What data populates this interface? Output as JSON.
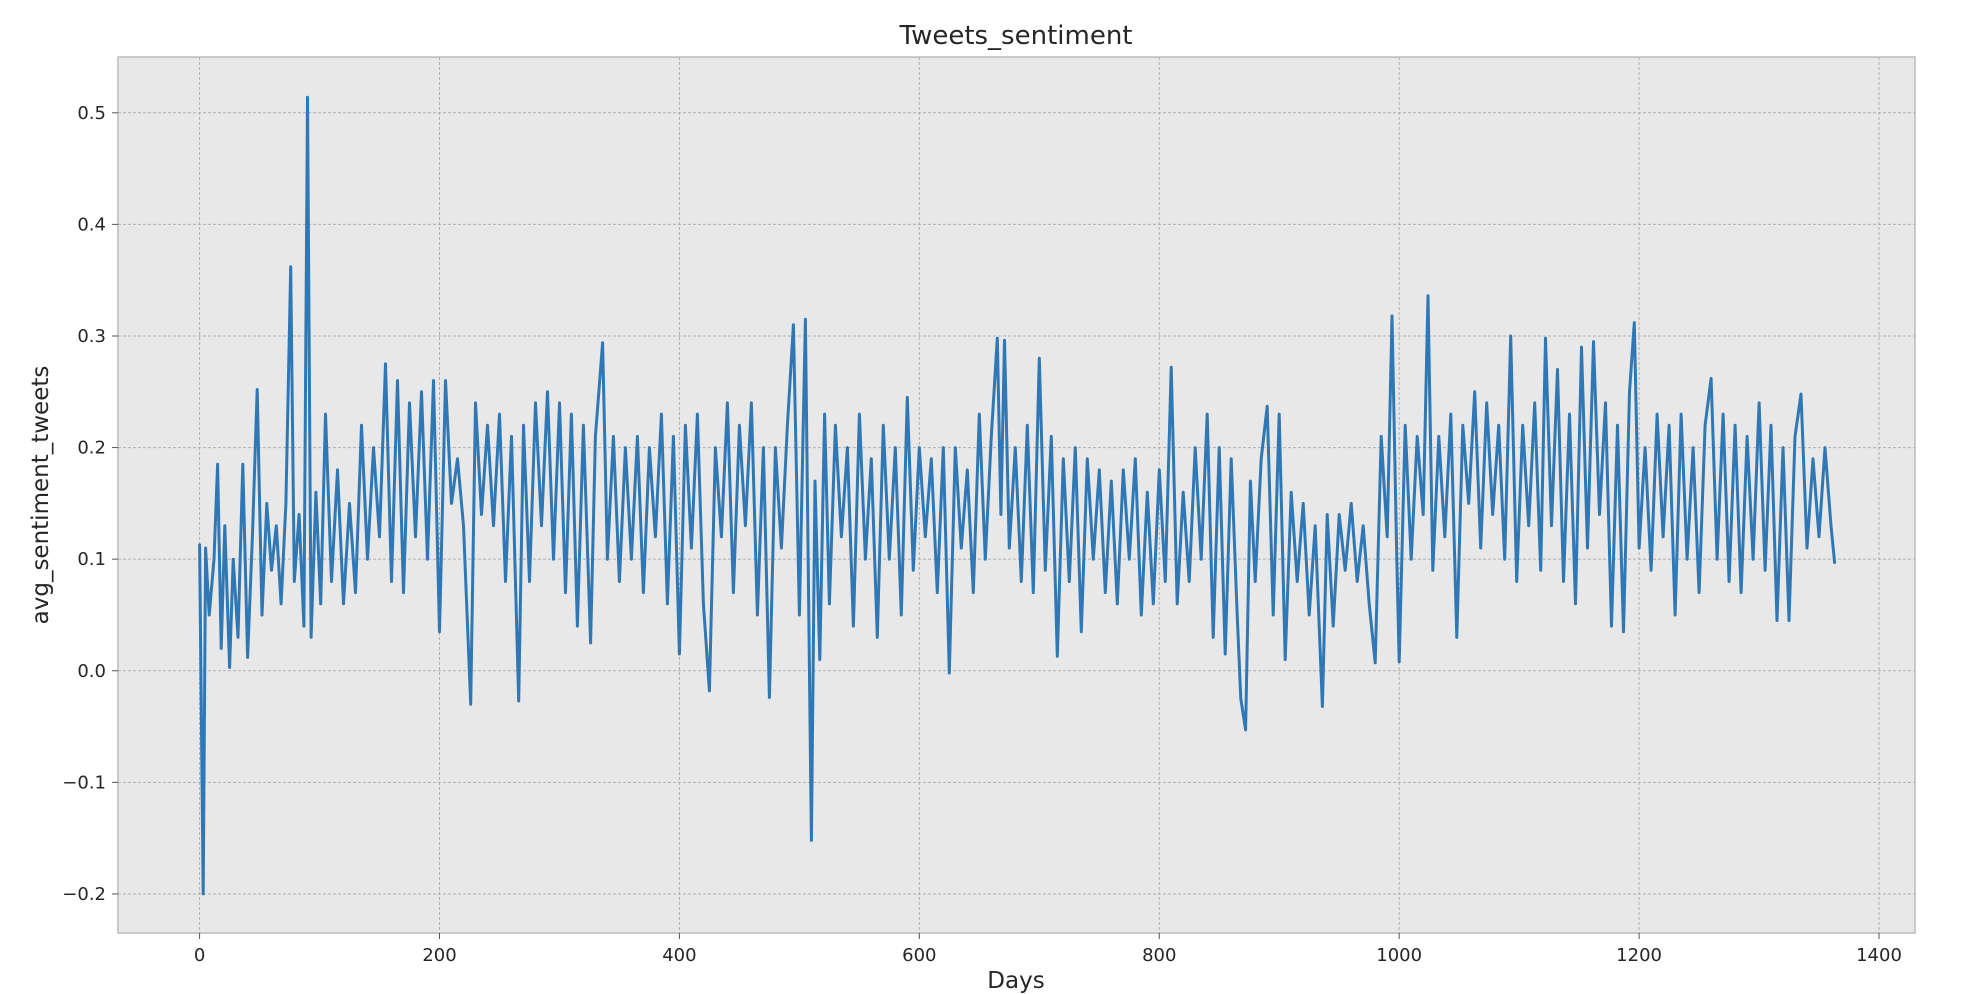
{
  "chart_data": {
    "type": "line",
    "title": "Tweets_sentiment",
    "xlabel": "Days",
    "ylabel": "avg_sentiment_tweets",
    "xlim": [
      -68,
      1430
    ],
    "ylim": [
      -0.235,
      0.55
    ],
    "x_ticks": [
      0,
      200,
      400,
      600,
      800,
      1000,
      1200,
      1400
    ],
    "x_tick_labels": [
      "0",
      "200",
      "400",
      "600",
      "800",
      "1000",
      "1200",
      "1400"
    ],
    "y_ticks": [
      -0.2,
      -0.1,
      0.0,
      0.1,
      0.2,
      0.3,
      0.4,
      0.5
    ],
    "y_tick_labels": [
      "−0.2",
      "−0.1",
      "0.0",
      "0.1",
      "0.2",
      "0.3",
      "0.4",
      "0.5"
    ],
    "grid": true,
    "style": "bmh",
    "colors": {
      "line": "#2f78b5",
      "plot_background": "#e8e8e8",
      "spine": "#bcbcbc"
    },
    "series": [
      {
        "x_start": 0,
        "x_end": 1363,
        "points": [
          [
            0,
            0.113
          ],
          [
            3,
            -0.2
          ],
          [
            5,
            0.11
          ],
          [
            8,
            0.05
          ],
          [
            12,
            0.1
          ],
          [
            15,
            0.185
          ],
          [
            18,
            0.02
          ],
          [
            21,
            0.13
          ],
          [
            25,
            0.003
          ],
          [
            28,
            0.1
          ],
          [
            32,
            0.03
          ],
          [
            36,
            0.185
          ],
          [
            40,
            0.012
          ],
          [
            44,
            0.12
          ],
          [
            48,
            0.252
          ],
          [
            52,
            0.05
          ],
          [
            56,
            0.15
          ],
          [
            60,
            0.09
          ],
          [
            64,
            0.13
          ],
          [
            68,
            0.06
          ],
          [
            72,
            0.15
          ],
          [
            76,
            0.362
          ],
          [
            79,
            0.08
          ],
          [
            83,
            0.14
          ],
          [
            87,
            0.04
          ],
          [
            90,
            0.514
          ],
          [
            93,
            0.03
          ],
          [
            97,
            0.16
          ],
          [
            101,
            0.06
          ],
          [
            105,
            0.23
          ],
          [
            110,
            0.08
          ],
          [
            115,
            0.18
          ],
          [
            120,
            0.06
          ],
          [
            125,
            0.15
          ],
          [
            130,
            0.07
          ],
          [
            135,
            0.22
          ],
          [
            140,
            0.1
          ],
          [
            145,
            0.2
          ],
          [
            150,
            0.12
          ],
          [
            155,
            0.275
          ],
          [
            160,
            0.08
          ],
          [
            165,
            0.26
          ],
          [
            170,
            0.07
          ],
          [
            175,
            0.24
          ],
          [
            180,
            0.12
          ],
          [
            185,
            0.25
          ],
          [
            190,
            0.1
          ],
          [
            195,
            0.26
          ],
          [
            200,
            0.035
          ],
          [
            205,
            0.26
          ],
          [
            210,
            0.15
          ],
          [
            215,
            0.19
          ],
          [
            220,
            0.13
          ],
          [
            226,
            -0.03
          ],
          [
            230,
            0.24
          ],
          [
            235,
            0.14
          ],
          [
            240,
            0.22
          ],
          [
            245,
            0.13
          ],
          [
            250,
            0.23
          ],
          [
            255,
            0.08
          ],
          [
            260,
            0.21
          ],
          [
            266,
            -0.027
          ],
          [
            270,
            0.22
          ],
          [
            275,
            0.08
          ],
          [
            280,
            0.24
          ],
          [
            285,
            0.13
          ],
          [
            290,
            0.25
          ],
          [
            295,
            0.1
          ],
          [
            300,
            0.24
          ],
          [
            305,
            0.07
          ],
          [
            310,
            0.23
          ],
          [
            315,
            0.04
          ],
          [
            320,
            0.22
          ],
          [
            326,
            0.025
          ],
          [
            330,
            0.21
          ],
          [
            336,
            0.294
          ],
          [
            340,
            0.1
          ],
          [
            345,
            0.21
          ],
          [
            350,
            0.08
          ],
          [
            355,
            0.2
          ],
          [
            360,
            0.1
          ],
          [
            365,
            0.21
          ],
          [
            370,
            0.07
          ],
          [
            375,
            0.2
          ],
          [
            380,
            0.12
          ],
          [
            385,
            0.23
          ],
          [
            390,
            0.06
          ],
          [
            395,
            0.21
          ],
          [
            400,
            0.015
          ],
          [
            405,
            0.22
          ],
          [
            410,
            0.11
          ],
          [
            415,
            0.23
          ],
          [
            420,
            0.06
          ],
          [
            425,
            -0.018
          ],
          [
            430,
            0.2
          ],
          [
            435,
            0.12
          ],
          [
            440,
            0.24
          ],
          [
            445,
            0.07
          ],
          [
            450,
            0.22
          ],
          [
            455,
            0.13
          ],
          [
            460,
            0.24
          ],
          [
            465,
            0.05
          ],
          [
            470,
            0.2
          ],
          [
            475,
            -0.024
          ],
          [
            480,
            0.2
          ],
          [
            485,
            0.11
          ],
          [
            490,
            0.22
          ],
          [
            495,
            0.31
          ],
          [
            500,
            0.05
          ],
          [
            505,
            0.315
          ],
          [
            510,
            -0.152
          ],
          [
            513,
            0.17
          ],
          [
            517,
            0.01
          ],
          [
            521,
            0.23
          ],
          [
            525,
            0.06
          ],
          [
            530,
            0.22
          ],
          [
            535,
            0.12
          ],
          [
            540,
            0.2
          ],
          [
            545,
            0.04
          ],
          [
            550,
            0.23
          ],
          [
            555,
            0.1
          ],
          [
            560,
            0.19
          ],
          [
            565,
            0.03
          ],
          [
            570,
            0.22
          ],
          [
            575,
            0.1
          ],
          [
            580,
            0.2
          ],
          [
            585,
            0.05
          ],
          [
            590,
            0.245
          ],
          [
            595,
            0.09
          ],
          [
            600,
            0.2
          ],
          [
            605,
            0.12
          ],
          [
            610,
            0.19
          ],
          [
            615,
            0.07
          ],
          [
            620,
            0.2
          ],
          [
            625,
            -0.002
          ],
          [
            630,
            0.2
          ],
          [
            635,
            0.11
          ],
          [
            640,
            0.18
          ],
          [
            645,
            0.07
          ],
          [
            650,
            0.23
          ],
          [
            655,
            0.1
          ],
          [
            660,
            0.21
          ],
          [
            665,
            0.298
          ],
          [
            668,
            0.14
          ],
          [
            671,
            0.296
          ],
          [
            675,
            0.11
          ],
          [
            680,
            0.2
          ],
          [
            685,
            0.08
          ],
          [
            690,
            0.22
          ],
          [
            695,
            0.07
          ],
          [
            700,
            0.28
          ],
          [
            705,
            0.09
          ],
          [
            710,
            0.21
          ],
          [
            715,
            0.013
          ],
          [
            720,
            0.19
          ],
          [
            725,
            0.08
          ],
          [
            730,
            0.2
          ],
          [
            735,
            0.035
          ],
          [
            740,
            0.19
          ],
          [
            745,
            0.1
          ],
          [
            750,
            0.18
          ],
          [
            755,
            0.07
          ],
          [
            760,
            0.17
          ],
          [
            765,
            0.06
          ],
          [
            770,
            0.18
          ],
          [
            775,
            0.1
          ],
          [
            780,
            0.19
          ],
          [
            785,
            0.05
          ],
          [
            790,
            0.16
          ],
          [
            795,
            0.06
          ],
          [
            800,
            0.18
          ],
          [
            805,
            0.08
          ],
          [
            810,
            0.272
          ],
          [
            815,
            0.06
          ],
          [
            820,
            0.16
          ],
          [
            825,
            0.08
          ],
          [
            830,
            0.2
          ],
          [
            835,
            0.1
          ],
          [
            840,
            0.23
          ],
          [
            845,
            0.03
          ],
          [
            850,
            0.2
          ],
          [
            855,
            0.015
          ],
          [
            860,
            0.19
          ],
          [
            865,
            0.05
          ],
          [
            868,
            -0.025
          ],
          [
            872,
            -0.053
          ],
          [
            876,
            0.17
          ],
          [
            880,
            0.08
          ],
          [
            885,
            0.19
          ],
          [
            890,
            0.237
          ],
          [
            895,
            0.05
          ],
          [
            900,
            0.23
          ],
          [
            905,
            0.01
          ],
          [
            910,
            0.16
          ],
          [
            915,
            0.08
          ],
          [
            920,
            0.15
          ],
          [
            925,
            0.05
          ],
          [
            930,
            0.13
          ],
          [
            936,
            -0.032
          ],
          [
            940,
            0.14
          ],
          [
            945,
            0.04
          ],
          [
            950,
            0.14
          ],
          [
            955,
            0.09
          ],
          [
            960,
            0.15
          ],
          [
            965,
            0.08
          ],
          [
            970,
            0.13
          ],
          [
            975,
            0.06
          ],
          [
            980,
            0.007
          ],
          [
            985,
            0.21
          ],
          [
            990,
            0.12
          ],
          [
            994,
            0.318
          ],
          [
            998,
            0.1
          ],
          [
            1000,
            0.008
          ],
          [
            1005,
            0.22
          ],
          [
            1010,
            0.1
          ],
          [
            1015,
            0.21
          ],
          [
            1020,
            0.14
          ],
          [
            1024,
            0.336
          ],
          [
            1028,
            0.09
          ],
          [
            1033,
            0.21
          ],
          [
            1038,
            0.12
          ],
          [
            1043,
            0.23
          ],
          [
            1048,
            0.03
          ],
          [
            1053,
            0.22
          ],
          [
            1058,
            0.15
          ],
          [
            1063,
            0.25
          ],
          [
            1068,
            0.11
          ],
          [
            1073,
            0.24
          ],
          [
            1078,
            0.14
          ],
          [
            1083,
            0.22
          ],
          [
            1088,
            0.1
          ],
          [
            1093,
            0.3
          ],
          [
            1098,
            0.08
          ],
          [
            1103,
            0.22
          ],
          [
            1108,
            0.13
          ],
          [
            1113,
            0.24
          ],
          [
            1118,
            0.09
          ],
          [
            1122,
            0.298
          ],
          [
            1127,
            0.13
          ],
          [
            1132,
            0.27
          ],
          [
            1137,
            0.08
          ],
          [
            1142,
            0.23
          ],
          [
            1147,
            0.06
          ],
          [
            1152,
            0.29
          ],
          [
            1157,
            0.11
          ],
          [
            1162,
            0.295
          ],
          [
            1167,
            0.14
          ],
          [
            1172,
            0.24
          ],
          [
            1177,
            0.04
          ],
          [
            1182,
            0.22
          ],
          [
            1187,
            0.035
          ],
          [
            1192,
            0.25
          ],
          [
            1196,
            0.312
          ],
          [
            1200,
            0.11
          ],
          [
            1205,
            0.2
          ],
          [
            1210,
            0.09
          ],
          [
            1215,
            0.23
          ],
          [
            1220,
            0.12
          ],
          [
            1225,
            0.22
          ],
          [
            1230,
            0.05
          ],
          [
            1235,
            0.23
          ],
          [
            1240,
            0.1
          ],
          [
            1245,
            0.2
          ],
          [
            1250,
            0.07
          ],
          [
            1255,
            0.22
          ],
          [
            1260,
            0.262
          ],
          [
            1265,
            0.1
          ],
          [
            1270,
            0.23
          ],
          [
            1275,
            0.08
          ],
          [
            1280,
            0.22
          ],
          [
            1285,
            0.07
          ],
          [
            1290,
            0.21
          ],
          [
            1295,
            0.1
          ],
          [
            1300,
            0.24
          ],
          [
            1305,
            0.09
          ],
          [
            1310,
            0.22
          ],
          [
            1315,
            0.045
          ],
          [
            1320,
            0.2
          ],
          [
            1325,
            0.045
          ],
          [
            1330,
            0.21
          ],
          [
            1335,
            0.248
          ],
          [
            1340,
            0.11
          ],
          [
            1345,
            0.19
          ],
          [
            1350,
            0.12
          ],
          [
            1355,
            0.2
          ],
          [
            1360,
            0.13
          ],
          [
            1363,
            0.097
          ]
        ]
      }
    ]
  }
}
